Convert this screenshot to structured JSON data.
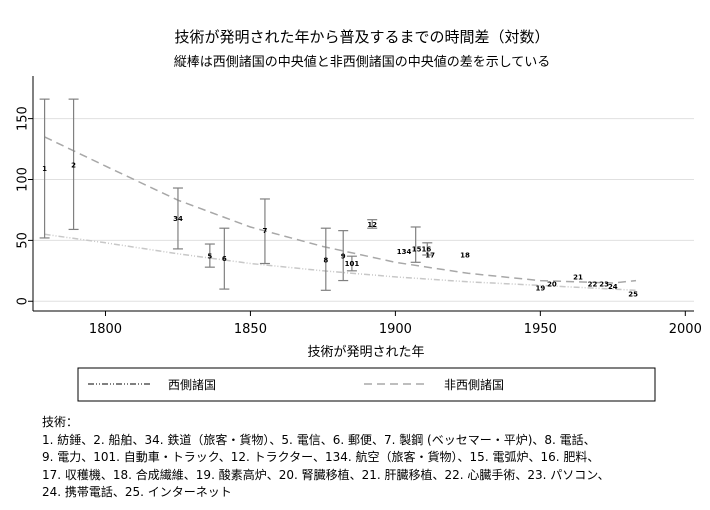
{
  "chart_data": {
    "type": "scatter",
    "title": "技術が発明された年から普及するまでの時間差（対数）",
    "subtitle": "縦棒は西側諸国の中央値と非西側諸国の中央値の差を示している",
    "xlabel": "技術が発明された年",
    "ylabel": "",
    "xlim": [
      1775,
      2003
    ],
    "ylim": [
      -8,
      185
    ],
    "xticks": [
      1800,
      1850,
      1900,
      1950,
      2000
    ],
    "yticks": [
      0,
      50,
      100,
      150
    ],
    "grid": true,
    "errorbars": [
      {
        "x": 1779,
        "low": 52,
        "high": 166
      },
      {
        "x": 1789,
        "low": 59,
        "high": 166
      },
      {
        "x": 1825,
        "low": 43,
        "high": 93
      },
      {
        "x": 1836,
        "low": 28,
        "high": 47
      },
      {
        "x": 1841,
        "low": 10,
        "high": 60
      },
      {
        "x": 1855,
        "low": 31,
        "high": 84
      },
      {
        "x": 1876,
        "low": 9,
        "high": 60
      },
      {
        "x": 1882,
        "low": 17,
        "high": 58
      },
      {
        "x": 1885,
        "low": 25,
        "high": 37
      },
      {
        "x": 1892,
        "low": 60,
        "high": 67
      },
      {
        "x": 1907,
        "low": 32,
        "high": 61
      },
      {
        "x": 1911,
        "low": 38,
        "high": 48
      }
    ],
    "points": [
      {
        "label": "1",
        "x": 1779,
        "y": 109
      },
      {
        "label": "2",
        "x": 1789,
        "y": 112
      },
      {
        "label": "34",
        "x": 1825,
        "y": 68
      },
      {
        "label": "5",
        "x": 1836,
        "y": 37
      },
      {
        "label": "6",
        "x": 1841,
        "y": 35
      },
      {
        "label": "7",
        "x": 1855,
        "y": 58
      },
      {
        "label": "8",
        "x": 1876,
        "y": 34
      },
      {
        "label": "9",
        "x": 1882,
        "y": 37
      },
      {
        "label": "101",
        "x": 1885,
        "y": 31
      },
      {
        "label": "12",
        "x": 1892,
        "y": 63
      },
      {
        "label": "134",
        "x": 1903,
        "y": 41
      },
      {
        "label": "1516",
        "x": 1909,
        "y": 43
      },
      {
        "label": "17",
        "x": 1912,
        "y": 38
      },
      {
        "label": "18",
        "x": 1924,
        "y": 38
      },
      {
        "label": "19",
        "x": 1950,
        "y": 11
      },
      {
        "label": "20",
        "x": 1954,
        "y": 14
      },
      {
        "label": "21",
        "x": 1963,
        "y": 20
      },
      {
        "label": "22",
        "x": 1968,
        "y": 14
      },
      {
        "label": "23",
        "x": 1972,
        "y": 14
      },
      {
        "label": "24",
        "x": 1975,
        "y": 12
      },
      {
        "label": "25",
        "x": 1982,
        "y": 6
      }
    ],
    "series": [
      {
        "name": "西側諸国",
        "style": "dash-dot",
        "x": [
          1779,
          1800,
          1825,
          1850,
          1875,
          1900,
          1925,
          1950,
          1975,
          1983
        ],
        "y": [
          55,
          48,
          39,
          31,
          25,
          20,
          16,
          13,
          10,
          9
        ]
      },
      {
        "name": "非西側諸国",
        "style": "dashed",
        "x": [
          1779,
          1800,
          1825,
          1850,
          1875,
          1900,
          1925,
          1950,
          1975,
          1983
        ],
        "y": [
          135,
          111,
          83,
          61,
          45,
          32,
          23,
          17,
          15,
          17
        ]
      }
    ],
    "legend_position": "bottom",
    "colors": {
      "west": "#c8c8c8",
      "nonwest": "#a8a8a8",
      "errorbar": "#808080",
      "grid": "#e0e0e0",
      "legend_west_line": "#000000"
    }
  },
  "notes": {
    "heading": "技術：",
    "lines": [
      "1. 紡錘、2. 船舶、34. 鉄道（旅客・貨物）、5. 電信、6. 郵便、7. 製鋼 (ベッセマー・平炉)、8. 電話、",
      "9. 電力、101. 自動車・トラック、12. トラクター、134. 航空（旅客・貨物）、15. 電弧炉、16. 肥料、",
      "17. 収穫機、18. 合成繊維、19. 酸素高炉、20. 腎臓移植、21. 肝臓移植、22. 心臓手術、23. パソコン、",
      "24. 携帯電話、25. インターネット"
    ]
  }
}
